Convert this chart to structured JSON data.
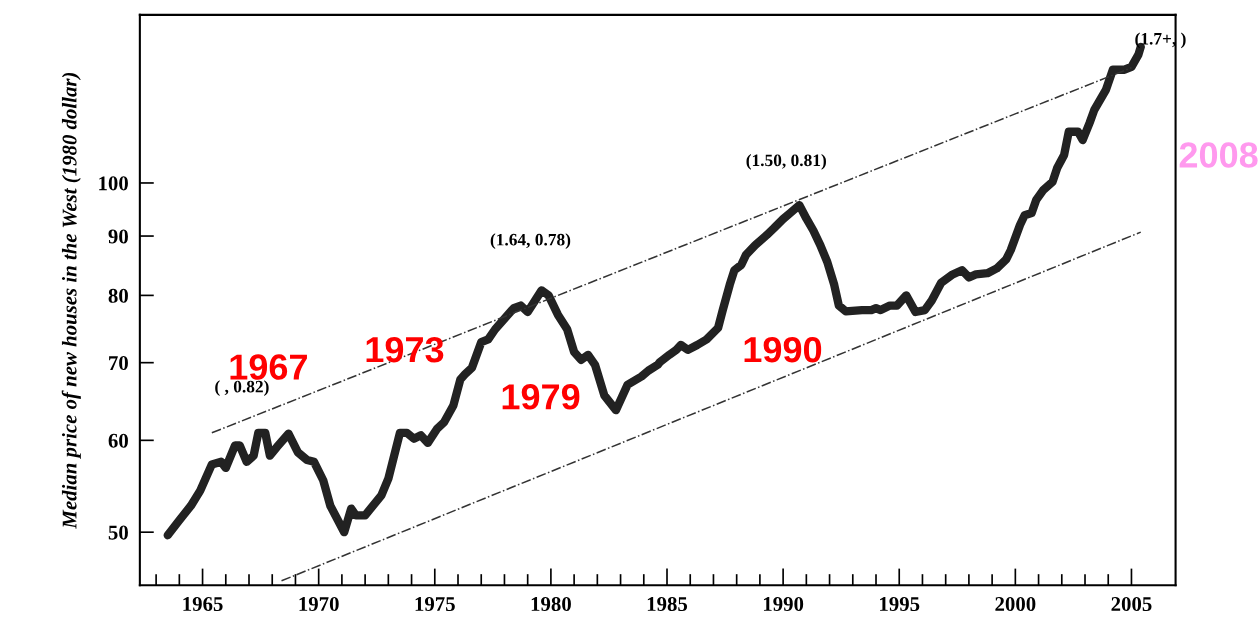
{
  "chart_data": {
    "type": "line",
    "ylabel": "Median price of new houses in the West (1980 dollar)",
    "log": "y",
    "grid": false,
    "marker": "none",
    "series": [
      {
        "color": "#222222",
        "line_style": "solid",
        "x": [
          1963.5,
          1964.0,
          1964.5,
          1964.9,
          1965.4,
          1965.8,
          1966.0,
          1966.4,
          1966.6,
          1966.9,
          1967.2,
          1967.4,
          1967.7,
          1967.9,
          1968.2,
          1968.7,
          1969.1,
          1969.5,
          1969.8,
          1970.2,
          1970.5,
          1971.1,
          1971.4,
          1971.6,
          1972.0,
          1972.7,
          1973.0,
          1973.5,
          1973.8,
          1974.1,
          1974.4,
          1974.7,
          1975.1,
          1975.4,
          1975.8,
          1976.1,
          1976.3,
          1976.6,
          1977.0,
          1977.3,
          1977.6,
          1978.4,
          1978.7,
          1979.0,
          1979.6,
          1979.9,
          1980.3,
          1980.7,
          1981.0,
          1981.3,
          1981.6,
          1981.9,
          1982.3,
          1982.8,
          1983.3,
          1983.9,
          1984.2,
          1984.6,
          1984.7,
          1985.1,
          1985.4,
          1985.6,
          1985.9,
          1986.3,
          1986.7,
          1987.2,
          1987.4,
          1987.7,
          1987.9,
          1988.2,
          1988.4,
          1988.8,
          1989.3,
          1989.6,
          1990.0,
          1990.3,
          1990.7,
          1991.0,
          1991.3,
          1991.6,
          1991.9,
          1992.2,
          1992.4,
          1992.7,
          1993.4,
          1993.8,
          1994.0,
          1994.2,
          1994.6,
          1994.9,
          1995.3,
          1995.7,
          1996.1,
          1996.4,
          1996.8,
          1997.3,
          1997.7,
          1998.0,
          1998.3,
          1998.8,
          1999.2,
          1999.6,
          1999.8,
          2000.2,
          2000.4,
          2000.7,
          2000.9,
          2001.2,
          2001.6,
          2001.8,
          2002.1,
          2002.3,
          2002.7,
          2002.9,
          2003.2,
          2003.4,
          2003.7,
          2003.9,
          2004.2,
          2004.7,
          2005.0,
          2005.3,
          2005.4
        ],
        "values": [
          49.7,
          51.2,
          52.7,
          54.3,
          57.2,
          57.5,
          56.8,
          59.4,
          59.4,
          57.5,
          58.2,
          60.9,
          60.9,
          58.2,
          59.2,
          60.8,
          58.6,
          57.7,
          57.5,
          55.4,
          52.7,
          50.0,
          52.4,
          51.7,
          51.7,
          53.8,
          55.6,
          60.9,
          60.9,
          60.2,
          60.6,
          59.7,
          61.4,
          62.2,
          64.3,
          67.7,
          68.4,
          69.3,
          72.9,
          73.3,
          74.8,
          78.0,
          78.4,
          77.4,
          80.8,
          80.0,
          77.0,
          74.8,
          71.5,
          70.4,
          71.1,
          69.7,
          65.6,
          63.7,
          67.0,
          68.1,
          68.9,
          69.7,
          70.1,
          71.1,
          71.8,
          72.5,
          71.8,
          72.5,
          73.3,
          75.0,
          77.7,
          81.7,
          84.1,
          85.0,
          86.7,
          88.4,
          90.2,
          91.4,
          93.1,
          94.2,
          95.7,
          93.2,
          91.0,
          88.4,
          85.5,
          81.7,
          78.4,
          77.5,
          77.7,
          77.7,
          78.0,
          77.7,
          78.4,
          78.4,
          80.0,
          77.4,
          77.7,
          79.2,
          82.0,
          83.4,
          84.1,
          82.9,
          83.4,
          83.6,
          84.4,
          85.9,
          87.5,
          92.0,
          93.8,
          94.2,
          96.7,
          98.6,
          100.2,
          103.0,
          105.7,
          110.7,
          110.7,
          108.9,
          112.7,
          115.6,
          118.4,
          120.3,
          125.2,
          125.2,
          125.9,
          129.0,
          131.0
        ]
      },
      {
        "color": "#333333",
        "line_style": "dashdot",
        "x": [
          1965.4,
          2005.0
        ],
        "values": [
          60.9,
          125.7
        ]
      },
      {
        "color": "#333333",
        "line_style": "dashdot",
        "x": [
          1968.4,
          2005.4
        ],
        "values": [
          45.4,
          90.7
        ]
      }
    ],
    "xlim": [
      1962.3,
      2006.9
    ],
    "ylim": [
      45.0,
      139.6
    ],
    "xticks": [
      {
        "value": 1963,
        "label": null
      },
      {
        "value": 1964,
        "label": null
      },
      1965,
      {
        "value": 1966,
        "label": null
      },
      {
        "value": 1967,
        "label": null
      },
      {
        "value": 1968,
        "label": null
      },
      {
        "value": 1969,
        "label": null
      },
      1970,
      {
        "value": 1971,
        "label": null
      },
      {
        "value": 1972,
        "label": null
      },
      {
        "value": 1973,
        "label": null
      },
      {
        "value": 1974,
        "label": null
      },
      1975,
      {
        "value": 1976,
        "label": null
      },
      {
        "value": 1977,
        "label": null
      },
      {
        "value": 1978,
        "label": null
      },
      {
        "value": 1979,
        "label": null
      },
      1980,
      {
        "value": 1981,
        "label": null
      },
      {
        "value": 1982,
        "label": null
      },
      {
        "value": 1983,
        "label": null
      },
      {
        "value": 1984,
        "label": null
      },
      1985,
      {
        "value": 1986,
        "label": null
      },
      {
        "value": 1987,
        "label": null
      },
      {
        "value": 1988,
        "label": null
      },
      {
        "value": 1989,
        "label": null
      },
      1990,
      {
        "value": 1991,
        "label": null
      },
      {
        "value": 1992,
        "label": null
      },
      {
        "value": 1993,
        "label": null
      },
      {
        "value": 1994,
        "label": null
      },
      1995,
      {
        "value": 1996,
        "label": null
      },
      {
        "value": 1997,
        "label": null
      },
      {
        "value": 1998,
        "label": null
      },
      {
        "value": 1999,
        "label": null
      },
      2000,
      {
        "value": 2001,
        "label": null
      },
      {
        "value": 2002,
        "label": null
      },
      {
        "value": 2003,
        "label": null
      },
      {
        "value": 2004,
        "label": null
      },
      2005
    ],
    "yticks": [
      50,
      60,
      70,
      80,
      90,
      100
    ],
    "annotations": [
      "( , 0.82)",
      "(1.64, 0.78)",
      "(1.50, 0.81)",
      "(1.7+, )",
      "1967",
      "1973",
      "1979",
      "1990",
      "2008"
    ]
  }
}
